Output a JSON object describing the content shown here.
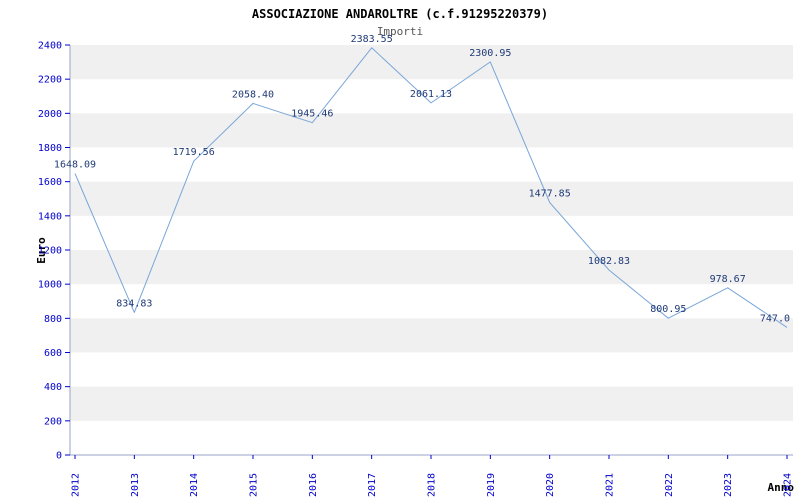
{
  "title": "ASSOCIAZIONE ANDAROLTRE (c.f.91295220379)",
  "subtitle": "Importi",
  "chart_data": {
    "type": "line",
    "x": [
      2012,
      2013,
      2014,
      2015,
      2016,
      2017,
      2018,
      2019,
      2020,
      2021,
      2022,
      2023,
      2024
    ],
    "values": [
      1648.09,
      834.83,
      1719.56,
      2058.4,
      1945.46,
      2383.55,
      2061.13,
      2300.95,
      1477.85,
      1082.83,
      800.95,
      978.67,
      747.0
    ],
    "labels": [
      "1648.09",
      "834.83",
      "1719.56",
      "2058.40",
      "1945.46",
      "2383.55",
      "2061.13",
      "2300.95",
      "1477.85",
      "1082.83",
      "800.95",
      "978.67",
      "747.0"
    ],
    "xlabel": "Anno",
    "ylabel": "Euro",
    "ylim": [
      0,
      2400
    ],
    "ytick_step": 200,
    "grid": "alternating-horizontal-bands",
    "legend": "none",
    "colors": {
      "line": "#7aa6d8",
      "axis_text": "#0000cc",
      "point_label": "#1f3a77",
      "band": "#f0f0f0",
      "axis_line": "#9aa6c8",
      "background": "#ffffff",
      "title_text": "#000000",
      "subtitle_text": "#555555"
    }
  }
}
